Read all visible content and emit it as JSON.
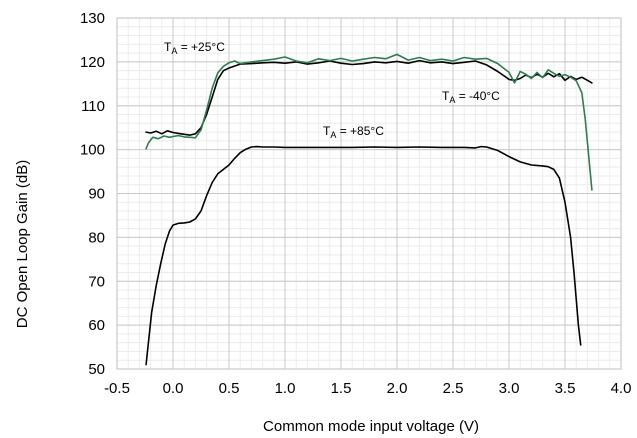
{
  "chart_data": {
    "type": "line",
    "xlabel": "Common mode input voltage (V)",
    "ylabel": "DC Open Loop Gain (dB)",
    "xlim": [
      -0.5,
      4.0
    ],
    "ylim": [
      50,
      130
    ],
    "x_ticks": [
      "-0.5",
      "0.0",
      "0.5",
      "1.0",
      "1.5",
      "2.0",
      "2.5",
      "3.0",
      "3.5",
      "4.0"
    ],
    "y_ticks": [
      "50",
      "60",
      "70",
      "80",
      "90",
      "100",
      "110",
      "120",
      "130"
    ],
    "grid": true,
    "minor_grid": true,
    "annotations": [
      {
        "prefix": "T",
        "sub": "A",
        "text": " = +25°C"
      },
      {
        "prefix": "T",
        "sub": "A",
        "text": " = -40°C"
      },
      {
        "prefix": "T",
        "sub": "A",
        "text": " = +85°C"
      }
    ],
    "series": [
      {
        "color": "#000000",
        "x": [
          -0.24,
          -0.2,
          -0.15,
          -0.1,
          -0.05,
          0.0,
          0.05,
          0.1,
          0.15,
          0.2,
          0.25,
          0.3,
          0.35,
          0.4,
          0.45,
          0.5,
          0.6,
          0.7,
          0.8,
          0.9,
          1.0,
          1.1,
          1.2,
          1.3,
          1.4,
          1.5,
          1.6,
          1.7,
          1.8,
          1.9,
          2.0,
          2.1,
          2.2,
          2.3,
          2.4,
          2.5,
          2.6,
          2.7,
          2.8,
          2.9,
          3.0,
          3.05,
          3.1,
          3.15,
          3.2,
          3.25,
          3.3,
          3.35,
          3.4,
          3.45,
          3.5,
          3.55,
          3.6,
          3.65,
          3.7,
          3.74
        ],
        "y": [
          104,
          103.8,
          104.2,
          103.6,
          104.3,
          103.9,
          103.7,
          103.5,
          103.3,
          103.6,
          105,
          108,
          112,
          116,
          118,
          118.6,
          119.5,
          119.6,
          119.8,
          119.9,
          119.7,
          120,
          119.5,
          119.8,
          120.2,
          119.7,
          119.4,
          119.6,
          120,
          119.8,
          120.1,
          119.7,
          120.3,
          119.8,
          120,
          119.6,
          119.9,
          120.2,
          119.3,
          117.8,
          116,
          115.8,
          116.2,
          117,
          116.4,
          117.2,
          116.5,
          117.4,
          116.6,
          117.3,
          115.8,
          116.7,
          116,
          116.5,
          115.8,
          115.2
        ]
      },
      {
        "color": "#2e7d4f",
        "x": [
          -0.24,
          -0.22,
          -0.18,
          -0.13,
          -0.08,
          -0.03,
          0.0,
          0.05,
          0.1,
          0.15,
          0.2,
          0.25,
          0.3,
          0.35,
          0.4,
          0.45,
          0.5,
          0.55,
          0.6,
          0.7,
          0.8,
          0.9,
          1.0,
          1.1,
          1.2,
          1.3,
          1.4,
          1.5,
          1.6,
          1.7,
          1.8,
          1.9,
          2.0,
          2.1,
          2.2,
          2.3,
          2.4,
          2.5,
          2.6,
          2.7,
          2.8,
          2.9,
          3.0,
          3.05,
          3.1,
          3.15,
          3.2,
          3.25,
          3.3,
          3.35,
          3.4,
          3.45,
          3.5,
          3.55,
          3.6,
          3.65,
          3.68,
          3.71,
          3.74
        ],
        "y": [
          100.2,
          101.5,
          102.8,
          102.5,
          103.1,
          102.8,
          103,
          103.2,
          102.9,
          102.8,
          102.7,
          104.5,
          109,
          114,
          117.5,
          119,
          119.8,
          120.2,
          119.6,
          120,
          120.3,
          120.6,
          121.1,
          120.2,
          119.8,
          120.7,
          120.3,
          120.8,
          120.2,
          120.6,
          121,
          120.7,
          121.7,
          120.4,
          121,
          120.3,
          120.6,
          120.2,
          121,
          120.6,
          120.8,
          119.6,
          117.6,
          115.2,
          117.8,
          117.2,
          116.2,
          117.6,
          116.4,
          118.2,
          117.4,
          116.7,
          117.1,
          116.5,
          115.7,
          113,
          107,
          99,
          90.8
        ]
      },
      {
        "color": "#000000",
        "x": [
          -0.24,
          -0.22,
          -0.19,
          -0.15,
          -0.11,
          -0.07,
          -0.03,
          0.0,
          0.05,
          0.1,
          0.15,
          0.2,
          0.25,
          0.3,
          0.35,
          0.4,
          0.45,
          0.5,
          0.55,
          0.6,
          0.65,
          0.7,
          0.75,
          0.8,
          0.9,
          1.0,
          1.2,
          1.4,
          1.6,
          1.8,
          2.0,
          2.2,
          2.4,
          2.6,
          2.7,
          2.75,
          2.8,
          2.9,
          3.0,
          3.1,
          3.2,
          3.3,
          3.35,
          3.4,
          3.45,
          3.5,
          3.55,
          3.58,
          3.6,
          3.62,
          3.64
        ],
        "y": [
          51,
          56,
          63,
          69,
          74,
          78.5,
          81.5,
          82.8,
          83.2,
          83.3,
          83.5,
          84.2,
          86,
          89.5,
          92.5,
          94.5,
          95.5,
          96.5,
          98,
          99.3,
          100.1,
          100.6,
          100.7,
          100.6,
          100.6,
          100.5,
          100.5,
          100.5,
          100.5,
          100.6,
          100.5,
          100.6,
          100.5,
          100.5,
          100.4,
          100.7,
          100.6,
          99.8,
          98.4,
          97.2,
          96.5,
          96.3,
          96.1,
          95.5,
          93.5,
          88,
          80,
          72,
          66,
          60,
          55.5
        ]
      }
    ]
  }
}
